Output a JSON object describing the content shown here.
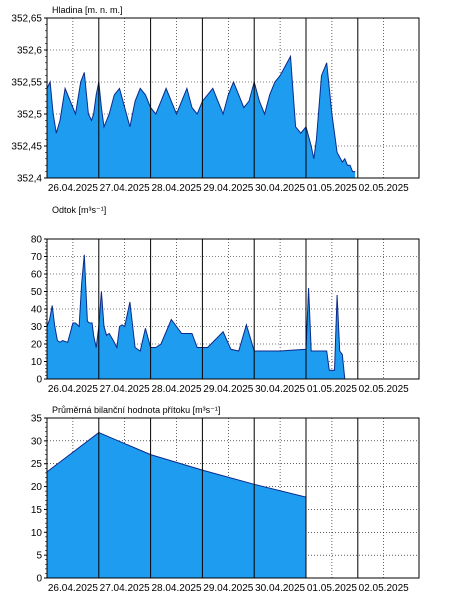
{
  "colors": {
    "fill": "#1e9cf0",
    "stroke": "#0a2a8a",
    "grid": "#000000",
    "vline": "#000000"
  },
  "chart_data": [
    {
      "type": "area",
      "ylabel": "Hladina [m. n. m.]",
      "ylim": [
        352.4,
        352.65
      ],
      "yticks": [
        {
          "v": 352.4,
          "label": "352,4"
        },
        {
          "v": 352.45,
          "label": "352,45"
        },
        {
          "v": 352.5,
          "label": "352,5"
        },
        {
          "v": 352.55,
          "label": "352,55"
        },
        {
          "v": 352.6,
          "label": "352,6"
        },
        {
          "v": 352.65,
          "label": "352,65"
        }
      ],
      "grid": true,
      "xrange": [
        0,
        7.0
      ],
      "xticks": [
        "26.04.2025",
        "27.04.2025",
        "28.04.2025",
        "29.04.2025",
        "30.04.2025",
        "01.05.2025",
        "02.05.2025"
      ],
      "x": [
        0.0,
        0.06,
        0.12,
        0.18,
        0.25,
        0.35,
        0.45,
        0.55,
        0.65,
        0.72,
        0.8,
        0.86,
        0.9,
        0.95,
        1.0,
        1.05,
        1.1,
        1.2,
        1.3,
        1.4,
        1.5,
        1.6,
        1.7,
        1.8,
        1.9,
        2.0,
        2.1,
        2.2,
        2.3,
        2.4,
        2.5,
        2.6,
        2.7,
        2.8,
        2.9,
        3.0,
        3.1,
        3.2,
        3.3,
        3.4,
        3.5,
        3.6,
        3.7,
        3.8,
        3.9,
        4.0,
        4.1,
        4.2,
        4.3,
        4.4,
        4.5,
        4.6,
        4.7,
        4.8,
        4.9,
        5.0,
        5.1,
        5.15,
        5.2,
        5.3,
        5.4,
        5.5,
        5.6,
        5.7,
        5.75,
        5.8,
        5.85,
        5.9,
        5.95
      ],
      "values": [
        352.54,
        352.55,
        352.5,
        352.47,
        352.49,
        352.54,
        352.52,
        352.5,
        352.55,
        352.565,
        352.5,
        352.49,
        352.5,
        352.53,
        352.55,
        352.51,
        352.48,
        352.5,
        352.53,
        352.54,
        352.51,
        352.48,
        352.52,
        352.54,
        352.53,
        352.51,
        352.5,
        352.52,
        352.54,
        352.52,
        352.5,
        352.52,
        352.54,
        352.51,
        352.5,
        352.52,
        352.53,
        352.54,
        352.52,
        352.5,
        352.53,
        352.55,
        352.53,
        352.51,
        352.52,
        352.55,
        352.52,
        352.5,
        352.53,
        352.55,
        352.56,
        352.575,
        352.59,
        352.48,
        352.47,
        352.48,
        352.45,
        352.43,
        352.46,
        352.56,
        352.58,
        352.5,
        352.44,
        352.425,
        352.43,
        352.42,
        352.42,
        352.41,
        352.41
      ]
    },
    {
      "type": "area",
      "ylabel": "Odtok [m³s⁻¹]",
      "ylim": [
        0,
        80
      ],
      "yticks": [
        {
          "v": 0,
          "label": "0"
        },
        {
          "v": 10,
          "label": "10"
        },
        {
          "v": 20,
          "label": "20"
        },
        {
          "v": 30,
          "label": "30"
        },
        {
          "v": 40,
          "label": "40"
        },
        {
          "v": 50,
          "label": "50"
        },
        {
          "v": 60,
          "label": "60"
        },
        {
          "v": 70,
          "label": "70"
        },
        {
          "v": 80,
          "label": "80"
        }
      ],
      "grid": true,
      "xrange": [
        0,
        7.0
      ],
      "xticks": [
        "26.04.2025",
        "27.04.2025",
        "28.04.2025",
        "29.04.2025",
        "30.04.2025",
        "01.05.2025",
        "02.05.2025"
      ],
      "x": [
        0.0,
        0.05,
        0.1,
        0.15,
        0.2,
        0.25,
        0.3,
        0.4,
        0.5,
        0.55,
        0.62,
        0.67,
        0.72,
        0.78,
        0.82,
        0.87,
        0.9,
        0.95,
        1.0,
        1.05,
        1.1,
        1.15,
        1.2,
        1.28,
        1.35,
        1.4,
        1.45,
        1.5,
        1.6,
        1.7,
        1.8,
        1.9,
        2.0,
        2.1,
        2.2,
        2.4,
        2.6,
        2.8,
        2.9,
        3.0,
        3.1,
        3.4,
        3.55,
        3.7,
        3.85,
        4.0,
        4.5,
        5.0,
        5.05,
        5.1,
        5.2,
        5.3,
        5.4,
        5.45,
        5.55,
        5.6,
        5.65,
        5.7,
        5.75,
        5.8
      ],
      "values": [
        30,
        34,
        42,
        30,
        22,
        21,
        22,
        21,
        32,
        32,
        30,
        55,
        71,
        33,
        32,
        32,
        25,
        18,
        30,
        50,
        30,
        25,
        26,
        22,
        18,
        30,
        31,
        30,
        44,
        18,
        16,
        29,
        18,
        18,
        20,
        34,
        26,
        26,
        18,
        18,
        18,
        27,
        17,
        16,
        31,
        16,
        16,
        17,
        52,
        16,
        16,
        16,
        16,
        5,
        5,
        48,
        16,
        14,
        0,
        0
      ]
    },
    {
      "type": "area",
      "ylabel": "Průměrná bilanční hodnota přítoku  [m³s⁻¹]",
      "ylim": [
        0,
        35
      ],
      "yticks": [
        {
          "v": 0,
          "label": "0"
        },
        {
          "v": 5,
          "label": "5"
        },
        {
          "v": 10,
          "label": "10"
        },
        {
          "v": 15,
          "label": "15"
        },
        {
          "v": 20,
          "label": "20"
        },
        {
          "v": 25,
          "label": "25"
        },
        {
          "v": 30,
          "label": "30"
        },
        {
          "v": 35,
          "label": "35"
        }
      ],
      "grid": true,
      "xrange": [
        0,
        7.0
      ],
      "xticks": [
        "26.04.2025",
        "27.04.2025",
        "28.04.2025",
        "29.04.2025",
        "30.04.2025",
        "01.05.2025",
        "02.05.2025"
      ],
      "x": [
        0.0,
        1.0,
        2.0,
        3.0,
        4.0,
        5.0
      ],
      "values": [
        23.2,
        31.8,
        27.0,
        23.6,
        20.5,
        17.7
      ]
    }
  ]
}
